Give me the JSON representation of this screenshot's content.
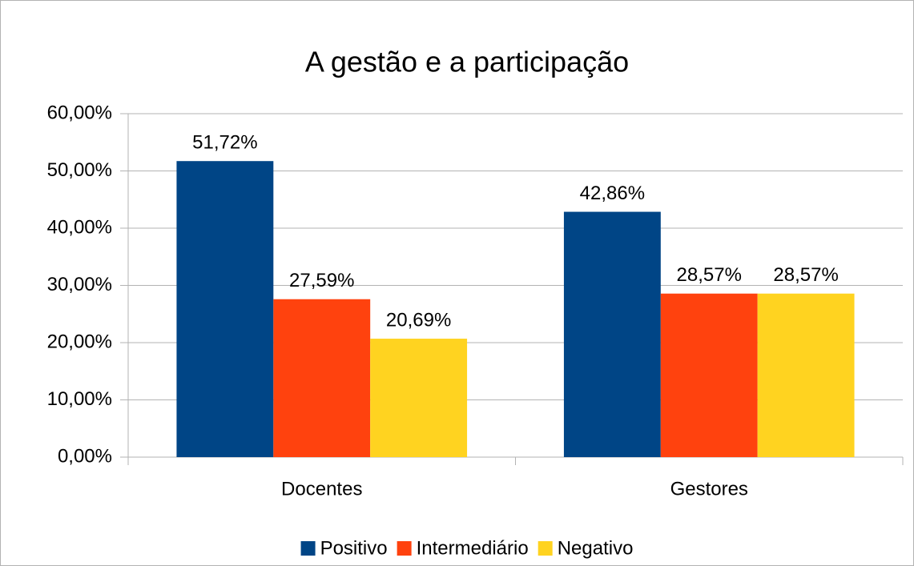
{
  "chart_data": {
    "type": "bar",
    "title": "A gestão e a participação",
    "categories": [
      "Docentes",
      "Gestores"
    ],
    "series": [
      {
        "name": "Positivo",
        "color": "#004586",
        "values": [
          51.72,
          42.86
        ],
        "value_labels": [
          "51,72%",
          "42,86%"
        ]
      },
      {
        "name": "Intermediário",
        "color": "#ff420e",
        "values": [
          27.59,
          28.57
        ],
        "value_labels": [
          "27,59%",
          "28,57%"
        ]
      },
      {
        "name": "Negativo",
        "color": "#ffd320",
        "values": [
          20.69,
          28.57
        ],
        "value_labels": [
          "20,69%",
          "28,57%"
        ]
      }
    ],
    "ylim": [
      0,
      60
    ],
    "yticks": [
      {
        "value": 0,
        "label": "0,00%"
      },
      {
        "value": 10,
        "label": "10,00%"
      },
      {
        "value": 20,
        "label": "20,00%"
      },
      {
        "value": 30,
        "label": "30,00%"
      },
      {
        "value": 40,
        "label": "40,00%"
      },
      {
        "value": 50,
        "label": "50,00%"
      },
      {
        "value": 60,
        "label": "60,00%"
      }
    ],
    "grid": true,
    "legend": "bottom"
  }
}
